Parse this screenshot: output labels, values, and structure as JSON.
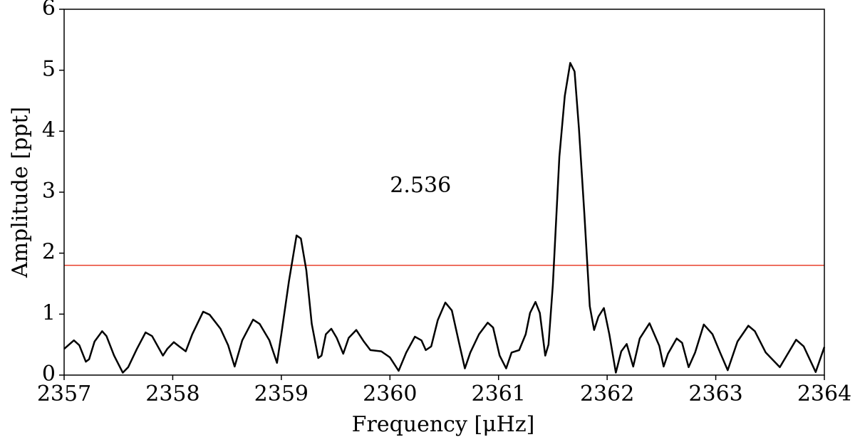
{
  "chart_data": {
    "type": "line",
    "x_label": "Frequency [μHz]",
    "y_label": "Amplitude [ppt]",
    "xlim": [
      2357,
      2364
    ],
    "xticks": [
      2357,
      2358,
      2359,
      2360,
      2361,
      2362,
      2363,
      2364
    ],
    "ylim": [
      0,
      6
    ],
    "yticks": [
      0,
      1,
      2,
      3,
      4,
      5,
      6
    ],
    "threshold": 1.8,
    "threshold_color": "#e8412c",
    "annotation": {
      "text": "2.536",
      "x": 2360.0,
      "y": 3.0
    },
    "series": [
      {
        "color": "#000000",
        "x": [
          2357.0,
          2357.09,
          2357.14,
          2357.2,
          2357.23,
          2357.28,
          2357.35,
          2357.39,
          2357.46,
          2357.54,
          2357.59,
          2357.67,
          2357.75,
          2357.81,
          2357.91,
          2357.95,
          2358.01,
          2358.06,
          2358.12,
          2358.18,
          2358.28,
          2358.34,
          2358.44,
          2358.51,
          2358.57,
          2358.64,
          2358.74,
          2358.8,
          2358.89,
          2358.96,
          2359.0,
          2359.07,
          2359.14,
          2359.18,
          2359.23,
          2359.28,
          2359.34,
          2359.37,
          2359.41,
          2359.46,
          2359.51,
          2359.57,
          2359.62,
          2359.69,
          2359.76,
          2359.82,
          2359.92,
          2360.0,
          2360.08,
          2360.15,
          2360.23,
          2360.29,
          2360.33,
          2360.38,
          2360.44,
          2360.51,
          2360.57,
          2360.64,
          2360.69,
          2360.74,
          2360.82,
          2360.9,
          2360.95,
          2361.01,
          2361.07,
          2361.12,
          2361.19,
          2361.25,
          2361.29,
          2361.34,
          2361.38,
          2361.43,
          2361.46,
          2361.5,
          2361.56,
          2361.61,
          2361.66,
          2361.7,
          2361.74,
          2361.79,
          2361.84,
          2361.88,
          2361.92,
          2361.97,
          2362.02,
          2362.08,
          2362.13,
          2362.18,
          2362.24,
          2362.3,
          2362.39,
          2362.48,
          2362.52,
          2362.56,
          2362.64,
          2362.69,
          2362.75,
          2362.81,
          2362.89,
          2362.97,
          2363.04,
          2363.11,
          2363.2,
          2363.3,
          2363.36,
          2363.46,
          2363.59,
          2363.66,
          2363.74,
          2363.81,
          2363.92,
          2364.0
        ],
        "values": [
          0.43,
          0.57,
          0.49,
          0.22,
          0.26,
          0.55,
          0.72,
          0.64,
          0.32,
          0.04,
          0.13,
          0.43,
          0.7,
          0.64,
          0.32,
          0.43,
          0.54,
          0.47,
          0.39,
          0.67,
          1.04,
          0.99,
          0.76,
          0.49,
          0.14,
          0.57,
          0.91,
          0.84,
          0.57,
          0.2,
          0.67,
          1.54,
          2.29,
          2.24,
          1.72,
          0.84,
          0.28,
          0.32,
          0.67,
          0.76,
          0.61,
          0.35,
          0.61,
          0.74,
          0.55,
          0.41,
          0.39,
          0.29,
          0.07,
          0.37,
          0.63,
          0.57,
          0.41,
          0.47,
          0.9,
          1.19,
          1.06,
          0.5,
          0.11,
          0.37,
          0.67,
          0.86,
          0.78,
          0.32,
          0.11,
          0.37,
          0.41,
          0.67,
          1.02,
          1.2,
          1.02,
          0.32,
          0.5,
          1.48,
          3.58,
          4.58,
          5.12,
          4.98,
          4.05,
          2.65,
          1.13,
          0.74,
          0.96,
          1.1,
          0.67,
          0.04,
          0.39,
          0.51,
          0.14,
          0.6,
          0.85,
          0.48,
          0.14,
          0.35,
          0.6,
          0.53,
          0.13,
          0.37,
          0.83,
          0.67,
          0.37,
          0.08,
          0.55,
          0.81,
          0.72,
          0.37,
          0.13,
          0.34,
          0.58,
          0.47,
          0.05,
          0.46
        ]
      }
    ]
  }
}
